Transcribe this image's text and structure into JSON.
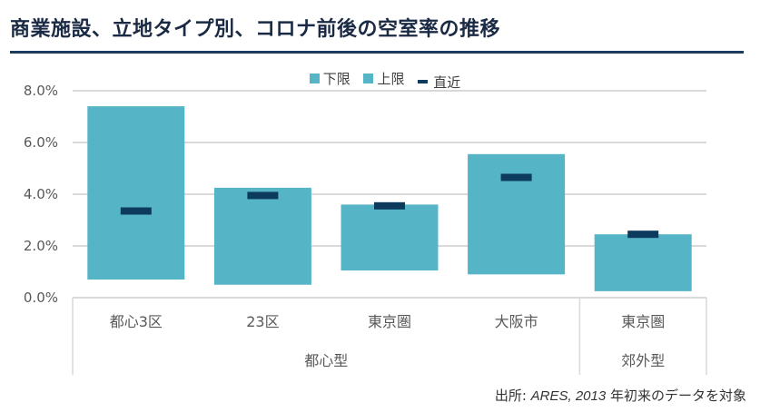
{
  "page": {
    "title": "商業施設、立地タイプ別、コロナ前後の空室率の推移",
    "source_prefix": "出所: ",
    "source_italic": "ARES, 2013",
    "source_suffix": " 年初来のデータを対象"
  },
  "colors": {
    "bar": "#56b4c7",
    "recent": "#0d3b5e",
    "grid": "#d9d9d9",
    "axis_text": "#595959",
    "title": "#1b2a44"
  },
  "chart_data": {
    "type": "bar",
    "title": "商業施設、立地タイプ別、コロナ前後の空室率の推移",
    "legend": [
      "下限",
      "上限",
      "直近"
    ],
    "legend_position": "top-center",
    "grid": true,
    "ylim": [
      0,
      0.08
    ],
    "yticks": [
      "0.0%",
      "2.0%",
      "4.0%",
      "6.0%",
      "8.0%"
    ],
    "categories": [
      "都心3区",
      "23区",
      "東京圏",
      "大阪市",
      "東京圏"
    ],
    "groups": [
      {
        "label": "都心型",
        "count": 4
      },
      {
        "label": "郊外型",
        "count": 1
      }
    ],
    "series": [
      {
        "name": "下限",
        "values": [
          0.007,
          0.005,
          0.0105,
          0.009,
          0.0025
        ]
      },
      {
        "name": "上限",
        "values": [
          0.074,
          0.0425,
          0.036,
          0.0555,
          0.0245
        ]
      },
      {
        "name": "直近",
        "values": [
          0.0335,
          0.0395,
          0.0355,
          0.0465,
          0.0245
        ]
      }
    ]
  }
}
